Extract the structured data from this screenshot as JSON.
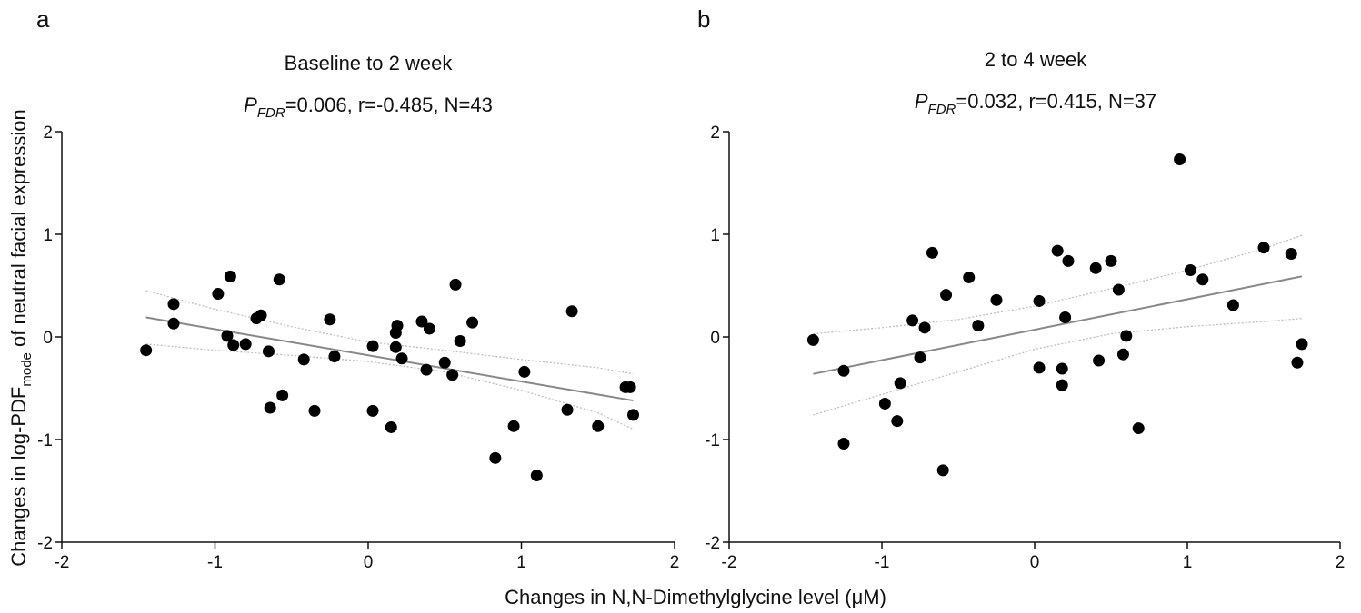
{
  "chart_data": [
    {
      "type": "scatter",
      "panel_label": "a",
      "title": "Baseline to 2 week",
      "stats": {
        "p_label_main": "P",
        "p_label_sub": "FDR",
        "p_value": "=0.006, r=-0.485, N=43"
      },
      "xlim": [
        -2,
        2
      ],
      "ylim": [
        -2,
        2
      ],
      "xticks": [
        "-2",
        "-1",
        "0",
        "1",
        "2"
      ],
      "yticks": [
        "-2",
        "-1",
        "0",
        "1",
        "2"
      ],
      "fit_line": {
        "x": [
          -1.45,
          1.73
        ],
        "y": [
          0.19,
          -0.62
        ]
      },
      "ci_upper": {
        "x": [
          -1.45,
          -1.0,
          -0.5,
          0.0,
          0.5,
          1.0,
          1.5,
          1.73
        ],
        "y": [
          0.45,
          0.27,
          0.1,
          -0.05,
          -0.13,
          -0.22,
          -0.3,
          -0.36
        ]
      },
      "ci_lower": {
        "x": [
          -1.45,
          -1.0,
          -0.5,
          0.0,
          0.5,
          1.0,
          1.5,
          1.73
        ],
        "y": [
          -0.07,
          -0.13,
          -0.18,
          -0.24,
          -0.34,
          -0.52,
          -0.74,
          -0.9
        ]
      },
      "points": [
        [
          -1.45,
          -0.13
        ],
        [
          -1.27,
          0.32
        ],
        [
          -1.27,
          0.13
        ],
        [
          -0.98,
          0.42
        ],
        [
          -0.9,
          0.59
        ],
        [
          -0.92,
          0.01
        ],
        [
          -0.88,
          -0.08
        ],
        [
          -0.8,
          -0.07
        ],
        [
          -0.73,
          0.18
        ],
        [
          -0.7,
          0.21
        ],
        [
          -0.65,
          -0.14
        ],
        [
          -0.64,
          -0.69
        ],
        [
          -0.58,
          0.56
        ],
        [
          -0.56,
          -0.57
        ],
        [
          -0.42,
          -0.22
        ],
        [
          -0.35,
          -0.72
        ],
        [
          -0.25,
          0.17
        ],
        [
          -0.22,
          -0.19
        ],
        [
          0.03,
          -0.09
        ],
        [
          0.03,
          -0.72
        ],
        [
          0.15,
          -0.88
        ],
        [
          0.18,
          0.04
        ],
        [
          0.19,
          0.11
        ],
        [
          0.18,
          -0.1
        ],
        [
          0.22,
          -0.21
        ],
        [
          0.35,
          0.15
        ],
        [
          0.38,
          -0.32
        ],
        [
          0.4,
          0.08
        ],
        [
          0.5,
          -0.25
        ],
        [
          0.55,
          -0.37
        ],
        [
          0.57,
          0.51
        ],
        [
          0.6,
          -0.04
        ],
        [
          0.68,
          0.14
        ],
        [
          0.83,
          -1.18
        ],
        [
          0.95,
          -0.87
        ],
        [
          1.02,
          -0.34
        ],
        [
          1.1,
          -1.35
        ],
        [
          1.3,
          -0.71
        ],
        [
          1.33,
          0.25
        ],
        [
          1.5,
          -0.87
        ],
        [
          1.68,
          -0.49
        ],
        [
          1.71,
          -0.49
        ],
        [
          1.73,
          -0.76
        ]
      ]
    },
    {
      "type": "scatter",
      "panel_label": "b",
      "title": "2 to 4 week",
      "stats": {
        "p_label_main": "P",
        "p_label_sub": "FDR",
        "p_value": "=0.032, r=0.415, N=37"
      },
      "xlim": [
        -2,
        2
      ],
      "ylim": [
        -2,
        2
      ],
      "xticks": [
        "-2",
        "-1",
        "0",
        "1",
        "2"
      ],
      "yticks": [
        "-2",
        "-1",
        "0",
        "1",
        "2"
      ],
      "fit_line": {
        "x": [
          -1.45,
          1.75
        ],
        "y": [
          -0.36,
          0.59
        ]
      },
      "ci_upper": {
        "x": [
          -1.45,
          -1.0,
          -0.5,
          0.0,
          0.5,
          1.0,
          1.5,
          1.75
        ],
        "y": [
          0.03,
          0.09,
          0.17,
          0.3,
          0.47,
          0.65,
          0.86,
          0.99
        ]
      },
      "ci_lower": {
        "x": [
          -1.45,
          -1.0,
          -0.5,
          0.0,
          0.5,
          1.0,
          1.5,
          1.75
        ],
        "y": [
          -0.76,
          -0.56,
          -0.34,
          -0.12,
          0.03,
          0.1,
          0.15,
          0.18
        ]
      },
      "points": [
        [
          -1.45,
          -0.03
        ],
        [
          -1.25,
          -0.33
        ],
        [
          -1.25,
          -1.04
        ],
        [
          -0.98,
          -0.65
        ],
        [
          -0.9,
          -0.82
        ],
        [
          -0.88,
          -0.45
        ],
        [
          -0.8,
          0.16
        ],
        [
          -0.75,
          -0.2
        ],
        [
          -0.72,
          0.09
        ],
        [
          -0.67,
          0.82
        ],
        [
          -0.6,
          -1.3
        ],
        [
          -0.58,
          0.41
        ],
        [
          -0.43,
          0.58
        ],
        [
          -0.37,
          0.11
        ],
        [
          -0.25,
          0.36
        ],
        [
          0.03,
          0.35
        ],
        [
          0.03,
          -0.3
        ],
        [
          0.15,
          0.84
        ],
        [
          0.18,
          -0.31
        ],
        [
          0.18,
          -0.47
        ],
        [
          0.2,
          0.19
        ],
        [
          0.22,
          0.74
        ],
        [
          0.4,
          0.67
        ],
        [
          0.42,
          -0.23
        ],
        [
          0.5,
          0.74
        ],
        [
          0.55,
          0.46
        ],
        [
          0.58,
          -0.17
        ],
        [
          0.6,
          0.01
        ],
        [
          0.68,
          -0.89
        ],
        [
          0.95,
          1.73
        ],
        [
          1.02,
          0.65
        ],
        [
          1.1,
          0.56
        ],
        [
          1.3,
          0.31
        ],
        [
          1.5,
          0.87
        ],
        [
          1.68,
          0.81
        ],
        [
          1.72,
          -0.25
        ],
        [
          1.75,
          -0.07
        ]
      ]
    }
  ],
  "shared": {
    "xlabel": "Changes in N,N-Dimethylglycine level (μM)",
    "ylabel_prefix": "Changes in  log-PDF",
    "ylabel_sub": "mode",
    "ylabel_suffix": " of neutral facial expression"
  },
  "colors": {
    "point": "#000000",
    "fit": "#888888",
    "ci": "#bdbdbd",
    "axis": "#111111"
  }
}
